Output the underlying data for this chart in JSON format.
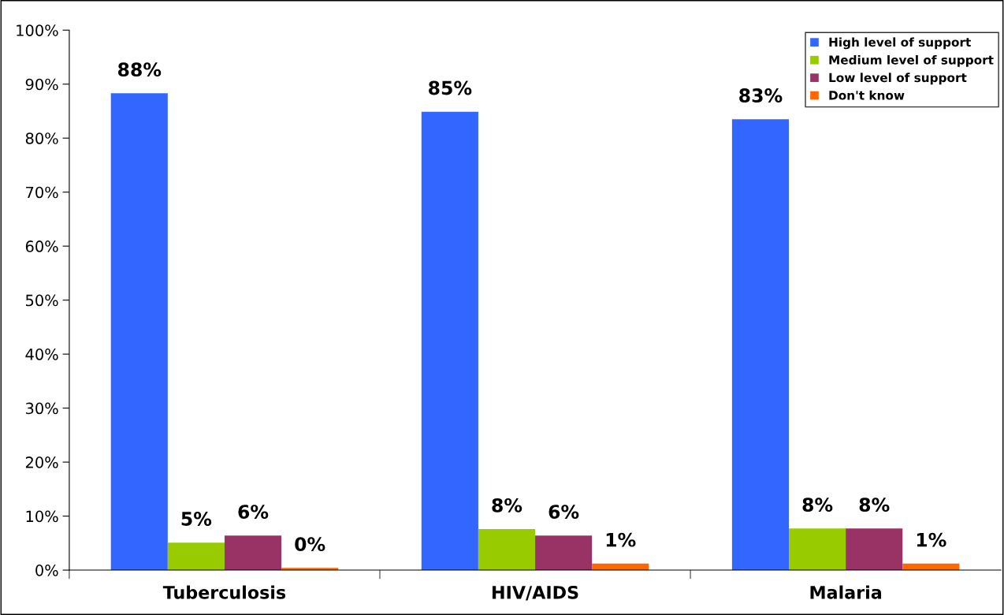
{
  "chart_data": {
    "type": "bar",
    "categories": [
      "Tuberculosis",
      "HIV/AIDS",
      "Malaria"
    ],
    "ylim": [
      0,
      100
    ],
    "yticks": [
      {
        "value": 0,
        "label": "0%"
      },
      {
        "value": 10,
        "label": "10%"
      },
      {
        "value": 20,
        "label": "20%"
      },
      {
        "value": 30,
        "label": "30%"
      },
      {
        "value": 40,
        "label": "40%"
      },
      {
        "value": 50,
        "label": "50%"
      },
      {
        "value": 60,
        "label": "60%"
      },
      {
        "value": 70,
        "label": "70%"
      },
      {
        "value": 80,
        "label": "80%"
      },
      {
        "value": 90,
        "label": "90%"
      },
      {
        "value": 100,
        "label": "100%"
      }
    ],
    "grid": false,
    "legend": "top right",
    "series": [
      {
        "name": "High level of support",
        "color": "#3366ff",
        "values": [
          88.3,
          84.9,
          83.5
        ],
        "value_labels": [
          "88%",
          "85%",
          "83%"
        ]
      },
      {
        "name": "Medium level of support",
        "color": "#99cc00",
        "values": [
          5.1,
          7.6,
          7.7
        ],
        "value_labels": [
          "5%",
          "8%",
          "8%"
        ]
      },
      {
        "name": "Low level of support",
        "color": "#993366",
        "values": [
          6.4,
          6.4,
          7.7
        ],
        "value_labels": [
          "6%",
          "6%",
          "8%"
        ]
      },
      {
        "name": "Don't know",
        "color": "#ff6600",
        "values": [
          0.4,
          1.2,
          1.2
        ],
        "value_labels": [
          "0%",
          "1%",
          "1%"
        ]
      }
    ]
  }
}
